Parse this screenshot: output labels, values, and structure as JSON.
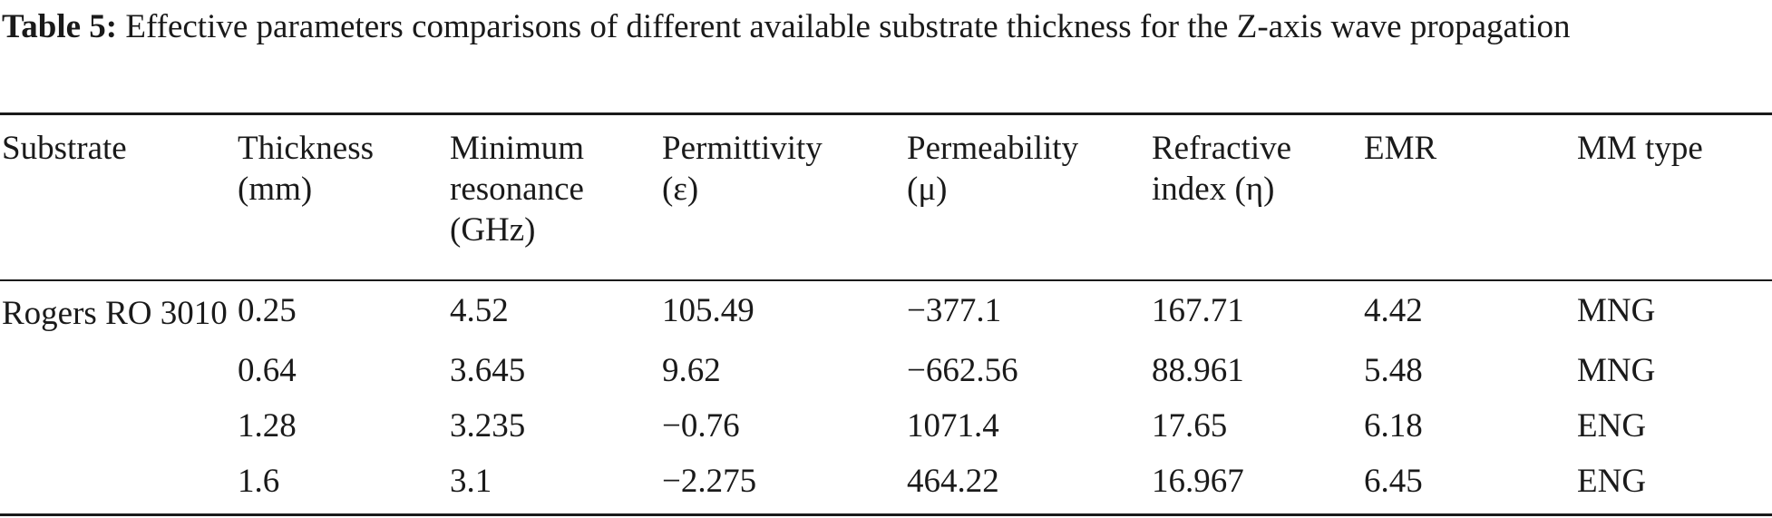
{
  "caption": {
    "label": "Table 5:",
    "text": " Effective parameters comparisons of different available substrate thickness for the Z-axis wave propagation"
  },
  "table": {
    "headers": [
      [
        "Substrate"
      ],
      [
        "Thickness",
        "(mm)"
      ],
      [
        "Minimum",
        "resonance",
        "(GHz)"
      ],
      [
        "Permittivity",
        "(ε)"
      ],
      [
        "Permeability",
        "(μ)"
      ],
      [
        "Refractive",
        "index (η)"
      ],
      [
        "EMR"
      ],
      [
        "MM type"
      ]
    ],
    "substrate": "Rogers RO 3010",
    "rows": [
      [
        "0.25",
        "4.52",
        "105.49",
        "−377.1",
        "167.71",
        "4.42",
        "MNG"
      ],
      [
        "0.64",
        "3.645",
        "9.62",
        "−662.56",
        "88.961",
        "5.48",
        "MNG"
      ],
      [
        "1.28",
        "3.235",
        "−0.76",
        "1071.4",
        "17.65",
        "6.18",
        "ENG"
      ],
      [
        "1.6",
        "3.1",
        "−2.275",
        "464.22",
        "16.967",
        "6.45",
        "ENG"
      ]
    ]
  }
}
